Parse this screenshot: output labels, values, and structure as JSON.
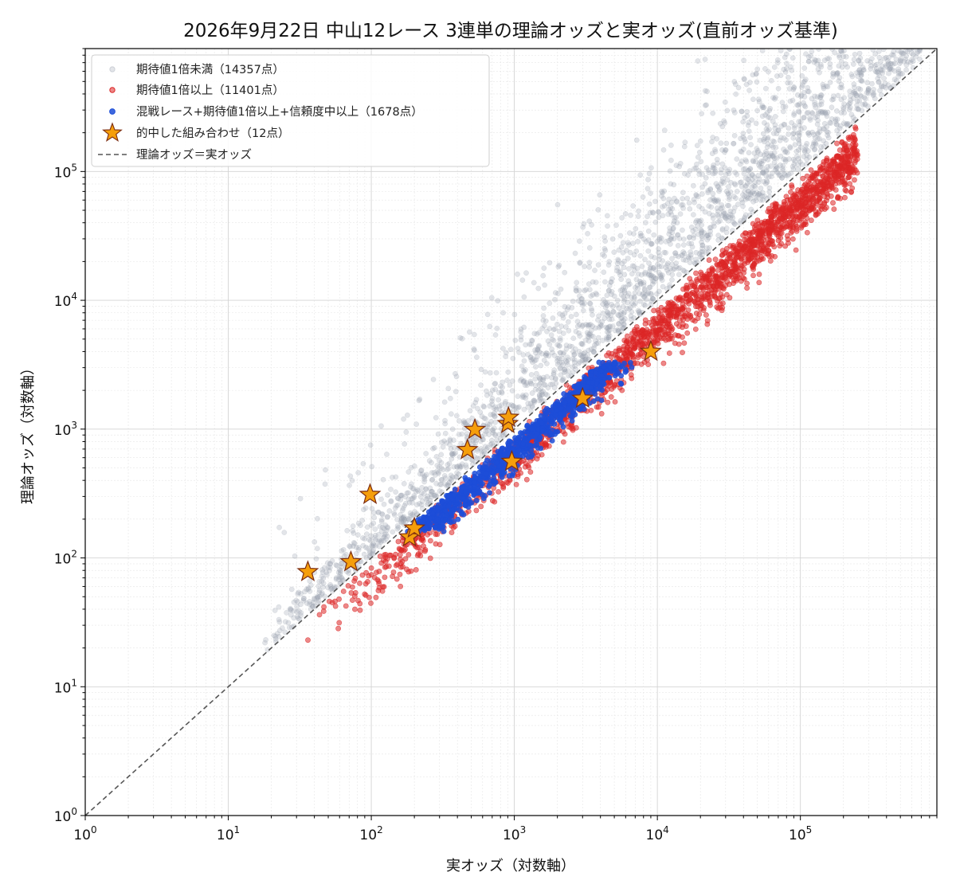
{
  "chart_data": {
    "type": "scatter",
    "title": "2026年9月22日 中山12レース 3連単の理論オッズと実オッズ(直前オッズ基準)",
    "xlabel": "実オッズ（対数軸）",
    "ylabel": "理論オッズ（対数軸）",
    "xscale": "log",
    "yscale": "log",
    "xlim": [
      1,
      900000
    ],
    "ylim": [
      1,
      900000
    ],
    "x_ticks": [
      {
        "base": "10",
        "exp": "0",
        "value": 1
      },
      {
        "base": "10",
        "exp": "1",
        "value": 10
      },
      {
        "base": "10",
        "exp": "2",
        "value": 100
      },
      {
        "base": "10",
        "exp": "3",
        "value": 1000
      },
      {
        "base": "10",
        "exp": "4",
        "value": 10000
      },
      {
        "base": "10",
        "exp": "5",
        "value": 100000
      }
    ],
    "y_ticks": [
      {
        "base": "10",
        "exp": "0",
        "value": 1
      },
      {
        "base": "10",
        "exp": "1",
        "value": 10
      },
      {
        "base": "10",
        "exp": "2",
        "value": 100
      },
      {
        "base": "10",
        "exp": "3",
        "value": 1000
      },
      {
        "base": "10",
        "exp": "4",
        "value": 10000
      },
      {
        "base": "10",
        "exp": "5",
        "value": 100000
      }
    ],
    "grid": true,
    "legend_position": "top-left",
    "series": [
      {
        "name": "期待値1倍未満（14357点）",
        "color": "#9ca3af",
        "count": 14357,
        "region": "theoretical > actual (above diagonal)"
      },
      {
        "name": "期待値1倍以上（11401点）",
        "color": "#dc2626",
        "count": 11401,
        "region": "theoretical <= actual (below diagonal)"
      },
      {
        "name": "混戦レース+期待値1倍以上+信頼度中以上（1678点）",
        "color": "#1d4ed8",
        "count": 1678,
        "region": "below diagonal, theoretical <= ~3000"
      }
    ],
    "hits": {
      "name": "的中した組み合わせ（12点）",
      "color": "#f59e0b",
      "points": [
        {
          "x": 36,
          "y": 78
        },
        {
          "x": 72,
          "y": 93
        },
        {
          "x": 98,
          "y": 310
        },
        {
          "x": 185,
          "y": 145
        },
        {
          "x": 200,
          "y": 170
        },
        {
          "x": 470,
          "y": 690
        },
        {
          "x": 530,
          "y": 990
        },
        {
          "x": 900,
          "y": 1100
        },
        {
          "x": 910,
          "y": 1230
        },
        {
          "x": 960,
          "y": 560
        },
        {
          "x": 3000,
          "y": 1730
        },
        {
          "x": 9000,
          "y": 4000
        }
      ]
    },
    "reference_line": {
      "name": "理論オッズ＝実オッズ",
      "color": "#555555",
      "style": "dashed"
    }
  }
}
